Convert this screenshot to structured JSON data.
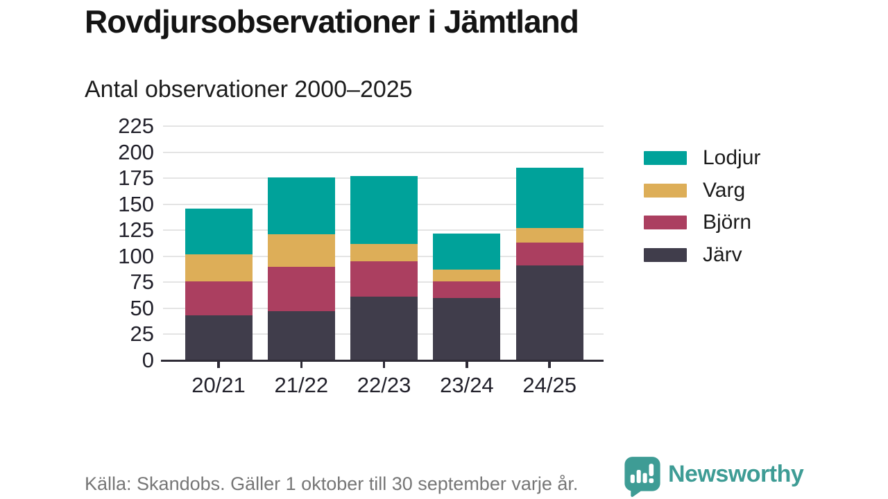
{
  "header": {
    "title": "Rovdjursobservationer i Jämtland",
    "subtitle": "Antal observationer 2000–2025"
  },
  "chart_data": {
    "type": "bar",
    "stacked": true,
    "title": "Rovdjursobservationer i Jämtland",
    "subtitle": "Antal observationer 2000–2025",
    "categories": [
      "20/21",
      "21/22",
      "22/23",
      "23/24",
      "24/25"
    ],
    "series": [
      {
        "name": "Järv",
        "color": "#403d4b",
        "values": [
          43,
          47,
          61,
          60,
          91
        ]
      },
      {
        "name": "Björn",
        "color": "#ab3f60",
        "values": [
          33,
          43,
          34,
          16,
          22
        ]
      },
      {
        "name": "Varg",
        "color": "#ddae58",
        "values": [
          26,
          31,
          17,
          11,
          14
        ]
      },
      {
        "name": "Lodjur",
        "color": "#00a29a",
        "values": [
          44,
          55,
          65,
          35,
          58
        ]
      }
    ],
    "totals": [
      146,
      176,
      177,
      122,
      185
    ],
    "legend_order": [
      "Lodjur",
      "Varg",
      "Björn",
      "Järv"
    ],
    "legend_position": "right",
    "yticks": [
      0,
      25,
      50,
      75,
      100,
      125,
      150,
      175,
      200,
      225
    ],
    "ylim": [
      0,
      225
    ],
    "grid": true,
    "xlabel": "",
    "ylabel": ""
  },
  "footer": {
    "source": "Källa: Skandobs. Gäller 1 oktober till 30 september varje år.",
    "brand": "Newsworthy"
  },
  "colors": {
    "accent_teal": "#00a29a",
    "accent_gold": "#ddae58",
    "accent_maroon": "#ab3f60",
    "accent_dark": "#403d4b",
    "brand_teal": "#3e9c95",
    "gridline": "#e4e4e4",
    "axis": "#2e2b36",
    "text": "#21202a",
    "muted_text": "#767676"
  }
}
